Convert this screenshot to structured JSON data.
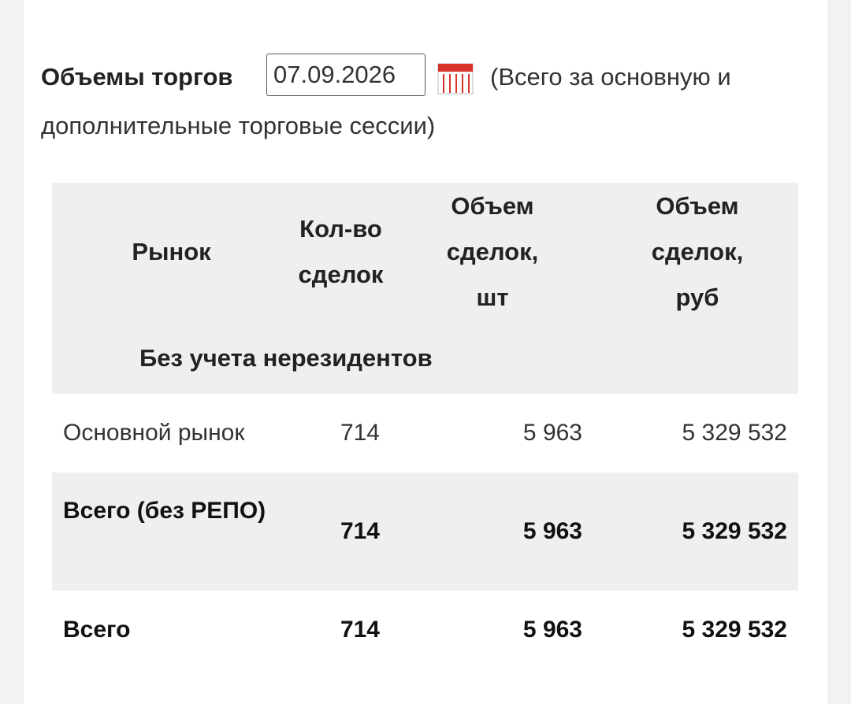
{
  "header": {
    "title": "Объемы торгов",
    "date": "07.09.2026",
    "note": "(Всего за основную и дополнительные торговые сессии)"
  },
  "table": {
    "columns": [
      "Рынок",
      "Кол-во сделок",
      "Объем сделок, шт",
      "Объем сделок, руб"
    ],
    "section": "Без учета нерезидентов",
    "rows": [
      [
        "Основной рынок",
        "714",
        "5 963",
        "5 329 532"
      ],
      [
        "Всего (без РЕПО)",
        "714",
        "5 963",
        "5 329 532"
      ],
      [
        "Всего",
        "714",
        "5 963",
        "5 329 532"
      ]
    ]
  }
}
